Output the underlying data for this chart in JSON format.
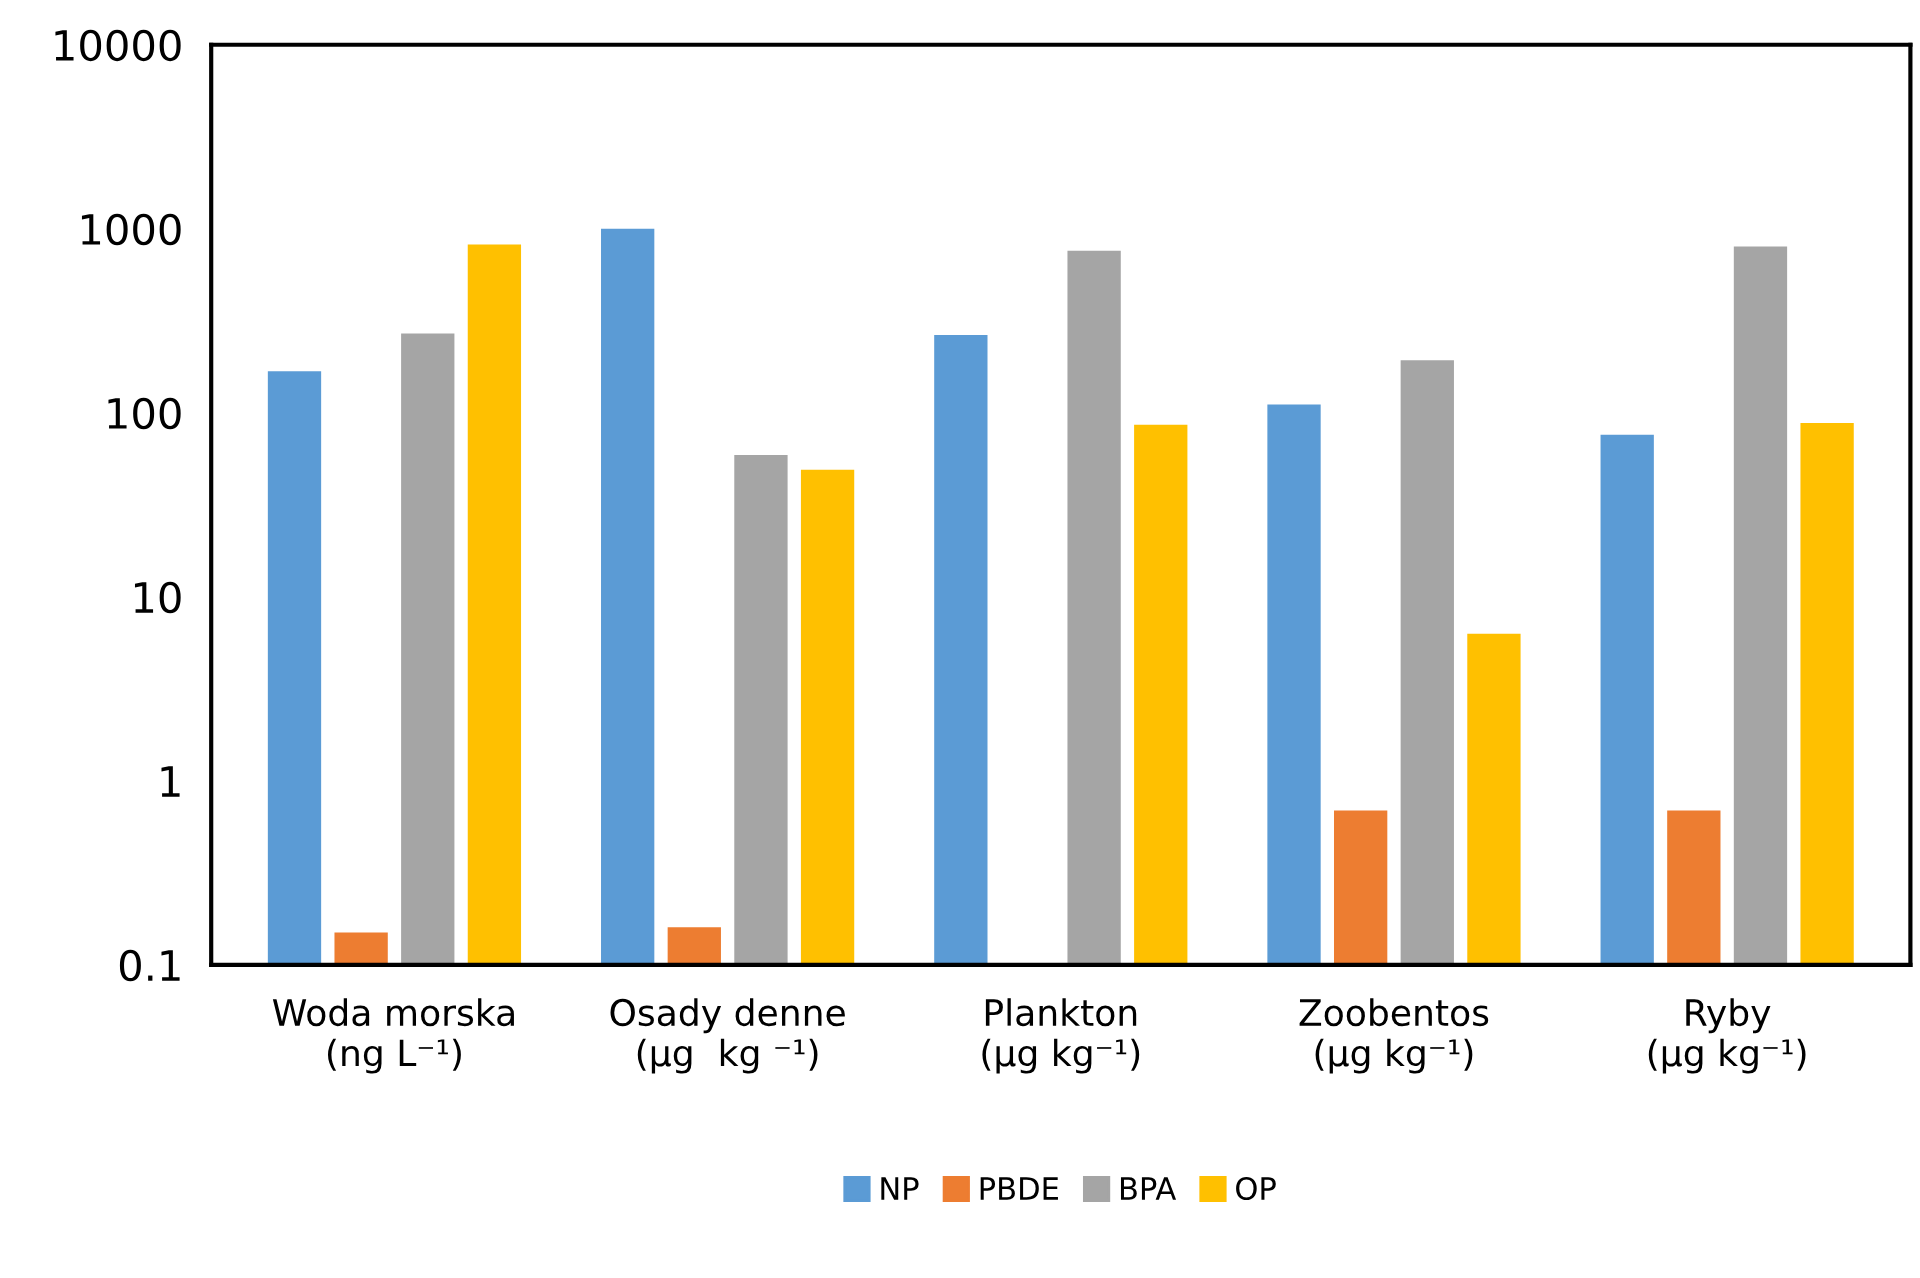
{
  "chart_data": {
    "type": "bar",
    "log": "y",
    "categories": [
      "Woda morska\n(ng L⁻¹)",
      "Osady denne\n(µg  kg ⁻¹)",
      "Plankton\n(µg kg⁻¹)",
      "Zoobentos\n(µg kg⁻¹)",
      "Ryby\n(µg kg⁻¹)"
    ],
    "series": [
      {
        "name": "NP",
        "color": "#5b9bd5",
        "values": [
          168,
          1000,
          265,
          111,
          76
        ]
      },
      {
        "name": "PBDE",
        "color": "#ed7d31",
        "values": [
          0.15,
          0.16,
          null,
          0.69,
          0.69
        ]
      },
      {
        "name": "BPA",
        "color": "#a5a5a5",
        "values": [
          270,
          59,
          760,
          193,
          800
        ]
      },
      {
        "name": "OP",
        "color": "#ffc000",
        "values": [
          820,
          49,
          86,
          6.3,
          88
        ]
      }
    ],
    "ylim": [
      0.1,
      10000
    ],
    "yticks": [
      0.1,
      1,
      10,
      100,
      1000,
      10000
    ],
    "grid": false,
    "legend": "bottom"
  }
}
